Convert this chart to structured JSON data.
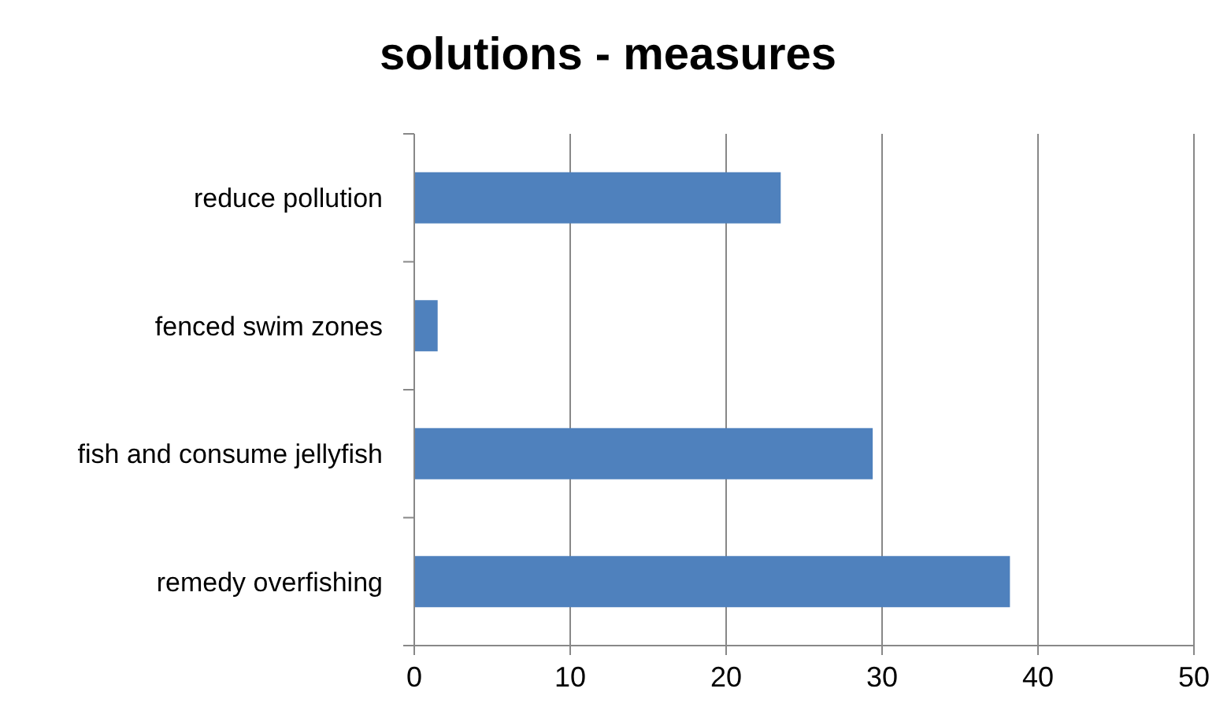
{
  "chart_data": {
    "type": "bar",
    "title": "solutions - measures",
    "orientation": "horizontal",
    "categories": [
      "reduce pollution",
      "fenced swim zones",
      "fish and consume jellyfish",
      "remedy overfishing"
    ],
    "values": [
      23.5,
      1.5,
      29.4,
      38.2
    ],
    "color": "#4f81bd",
    "xlim": [
      0,
      50
    ],
    "xticks": [
      0,
      10,
      20,
      30,
      40,
      50
    ],
    "grid": "x"
  }
}
